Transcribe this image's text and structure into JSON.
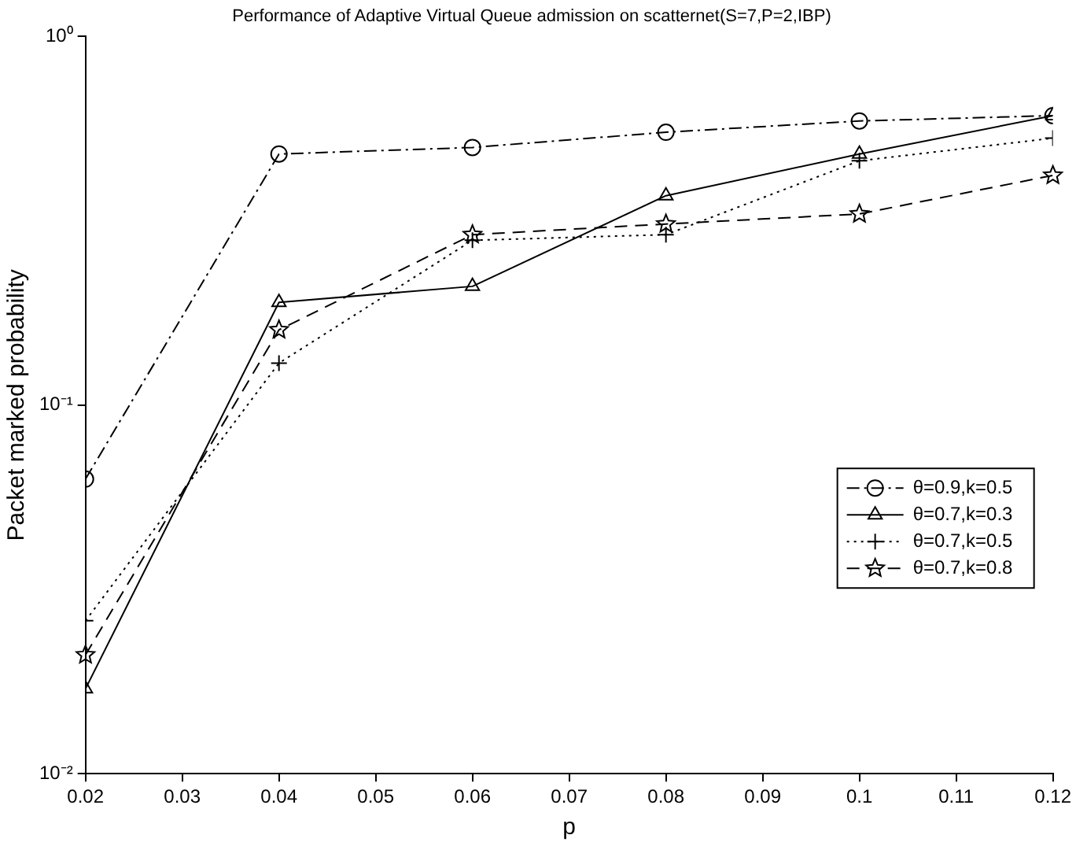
{
  "chart_data": {
    "type": "line",
    "title": "Performance of Adaptive Virtual Queue admission on scatternet(S=7,P=2,IBP)",
    "xlabel": "p",
    "ylabel": "Packet marked probability",
    "log": "y",
    "grid": false,
    "legend": "bottom right",
    "x": [
      0.02,
      0.04,
      0.06,
      0.08,
      0.1,
      0.12
    ],
    "xlim": [
      0.02,
      0.12
    ],
    "xticks": [
      0.02,
      0.03,
      0.04,
      0.05,
      0.06,
      0.07,
      0.08,
      0.09,
      0.1,
      0.11,
      0.12
    ],
    "ylim": [
      0.01,
      1
    ],
    "yticks": [
      {
        "value": 0.01,
        "label": "10⁻²"
      },
      {
        "value": 0.1,
        "label": "10⁻¹"
      },
      {
        "value": 1,
        "label": "10⁰"
      }
    ],
    "series": [
      {
        "name": "θ=0.9,k=0.5",
        "color": "#000000",
        "marker": "circle",
        "line_style": "dashdot",
        "values": [
          0.063,
          0.48,
          0.5,
          0.55,
          0.59,
          0.61
        ]
      },
      {
        "name": "θ=0.7,k=0.3",
        "color": "#000000",
        "marker": "triangle",
        "line_style": "solid",
        "values": [
          0.017,
          0.19,
          0.21,
          0.37,
          0.48,
          0.61
        ]
      },
      {
        "name": "θ=0.7,k=0.5",
        "color": "#000000",
        "marker": "cross",
        "line_style": "dotted",
        "values": [
          0.026,
          0.13,
          0.28,
          0.29,
          0.46,
          0.53
        ]
      },
      {
        "name": "θ=0.7,k=0.8",
        "color": "#000000",
        "marker": "star",
        "line_style": "dashed",
        "values": [
          0.021,
          0.16,
          0.29,
          0.31,
          0.33,
          0.42
        ]
      }
    ]
  }
}
